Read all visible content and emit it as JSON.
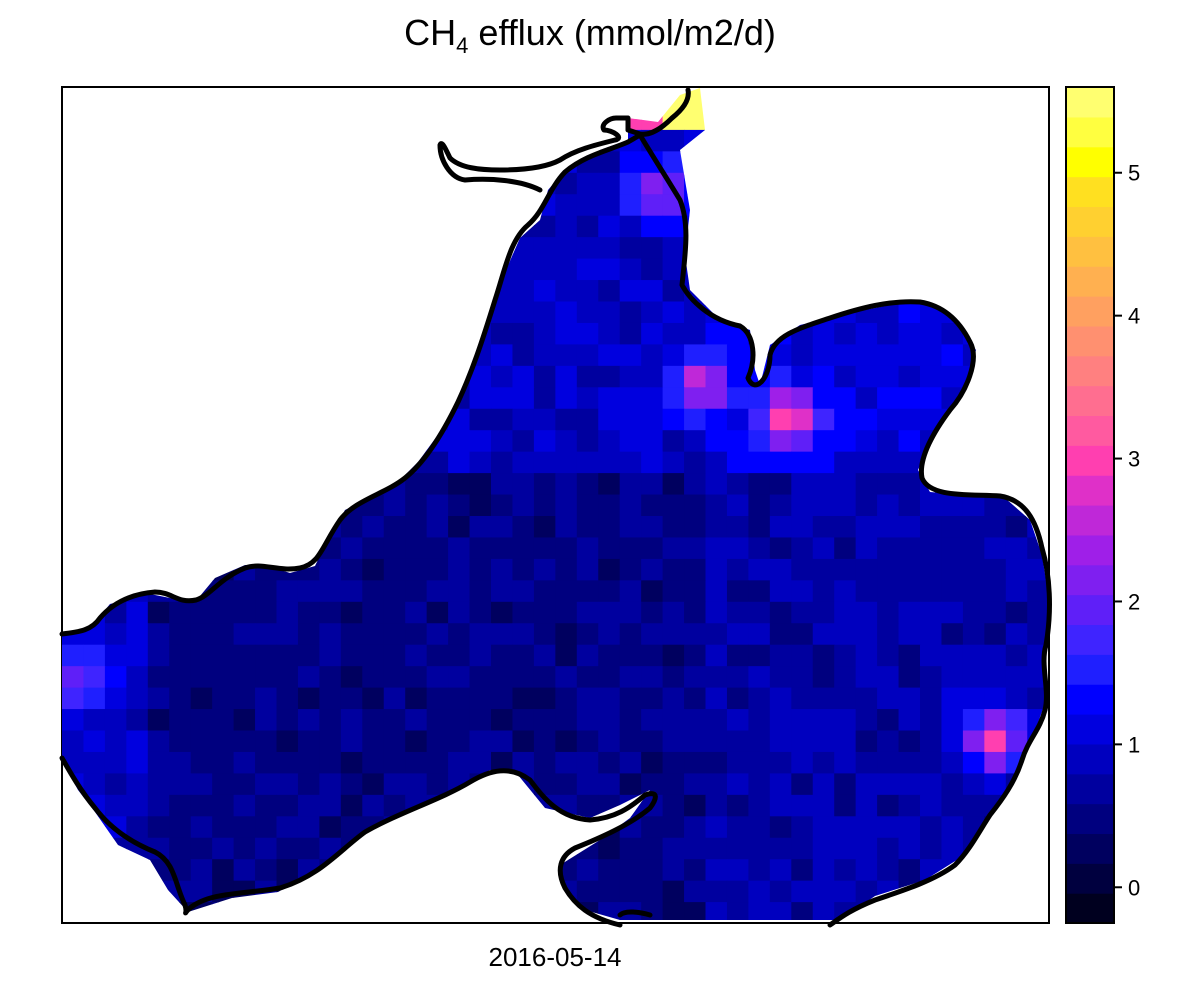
{
  "title": {
    "main": "CH",
    "subscript": "4",
    "rest": " efflux (mmol/m2/d)"
  },
  "chart_data": {
    "type": "heatmap",
    "title": "CH4 efflux (mmol/m2/d)",
    "xlabel": "2016-05-14",
    "ylabel": "",
    "colorbar": {
      "ticks": [
        "0",
        "1",
        "2",
        "3",
        "4",
        "5"
      ],
      "tick_values": [
        0,
        1,
        2,
        3,
        4,
        5
      ],
      "range": [
        -0.25,
        5.6
      ],
      "palette": [
        "#00001f",
        "#00003f",
        "#00005f",
        "#00007f",
        "#00009f",
        "#0000bf",
        "#0000df",
        "#0000ff",
        "#1f1fff",
        "#3f24ff",
        "#5f1ff8",
        "#7f1ff0",
        "#9f1fe8",
        "#bf28d8",
        "#df30c8",
        "#ff3fb0",
        "#ff5aa0",
        "#ff6e90",
        "#ff8080",
        "#ff9070",
        "#ffa060",
        "#ffb050",
        "#ffc040",
        "#ffd030",
        "#ffe020",
        "#ffff00",
        "#ffff40",
        "#ffff70"
      ]
    },
    "notable_values": {
      "overall_background_range": [
        0.3,
        1.2
      ],
      "north_inlet_max": 5.4,
      "hotspot_values": [
        2.2,
        2.8,
        3.3,
        2.5,
        3.2
      ]
    },
    "legend_position": "right",
    "grid": false
  }
}
